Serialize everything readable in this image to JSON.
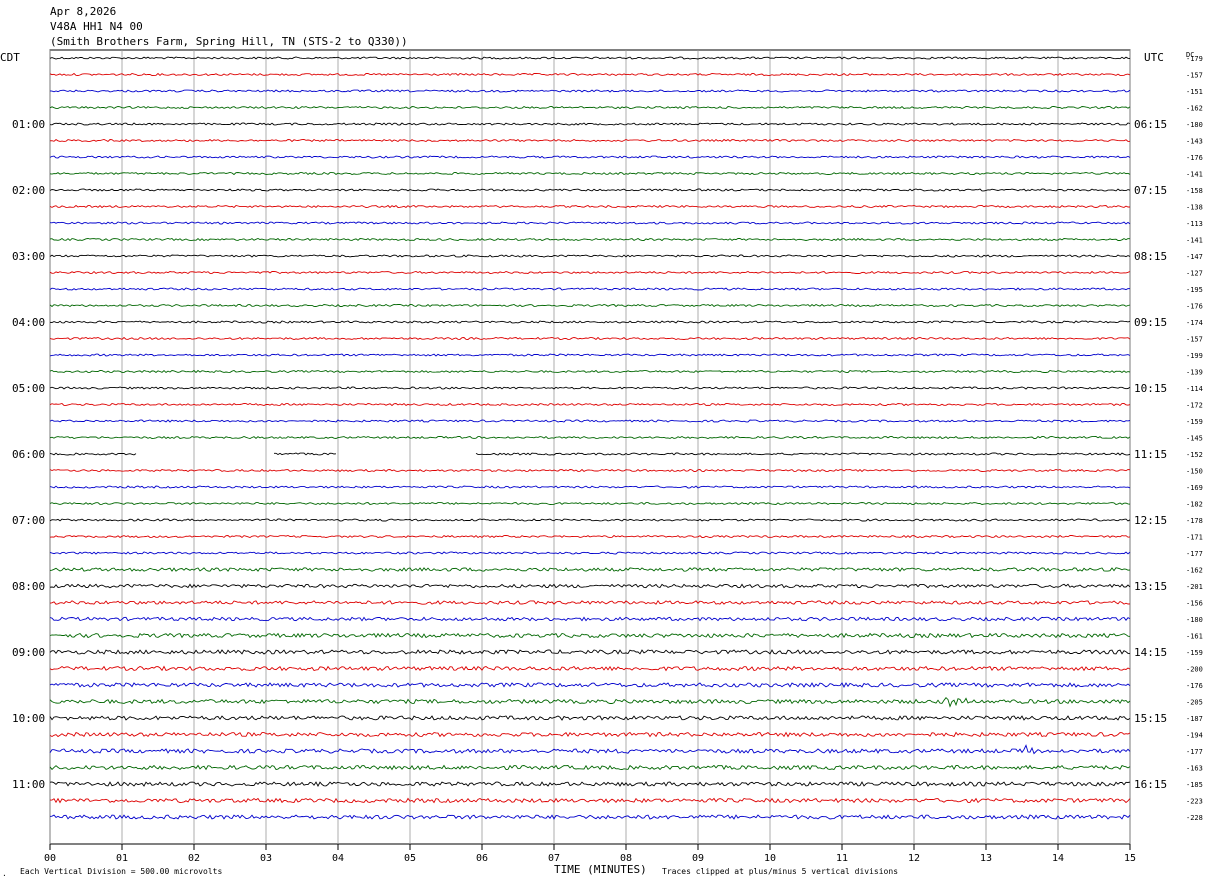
{
  "header": {
    "date": "Apr 8,2026",
    "channel": "V48A HH1 N4 00",
    "station": "(Smith Brothers Farm, Spring Hill, TN (STS-2 to Q330))"
  },
  "left_zone": "CDT",
  "right_zone": "UTC",
  "dc_label": "DC",
  "left_times": [
    "01:00",
    "02:00",
    "03:00",
    "04:00",
    "05:00",
    "06:00",
    "07:00",
    "08:00",
    "09:00",
    "10:00",
    "11:00"
  ],
  "right_times": [
    "06:15",
    "07:15",
    "08:15",
    "09:15",
    "10:15",
    "11:15",
    "12:15",
    "13:15",
    "14:15",
    "15:15",
    "16:15"
  ],
  "dc_offsets": [
    "-179",
    "-157",
    "-151",
    "-162",
    "-180",
    "-143",
    "-176",
    "-141",
    "-158",
    "-138",
    "-113",
    "-141",
    "-147",
    "-127",
    "-195",
    "-176",
    "-174",
    "-157",
    "-199",
    "-139",
    "-114",
    "-172",
    "-159",
    "-145",
    "-152",
    "-150",
    "-169",
    "-182",
    "-178",
    "-171",
    "-177",
    "-162",
    "-201",
    "-156",
    "-180",
    "-161",
    "-159",
    "-200",
    "-176",
    "-205",
    "-187",
    "-194",
    "-177",
    "-163",
    "-185",
    "-223",
    "-228"
  ],
  "footer": {
    "scale_note": "Each Vertical Division =  500.00 microvolts",
    "x_axis_label": "TIME (MINUTES)",
    "clip_note": "Traces clipped at plus/minus 5 vertical divisions"
  },
  "colors": {
    "trace_cycle": [
      "#000000",
      "#dd0000",
      "#0000cc",
      "#006600"
    ],
    "grid": "#999999"
  },
  "chart_data": {
    "type": "line",
    "description_of_series": "helicorder; 47 traces of 15 minutes each, colors cycle black/red/blue/green",
    "x_ticks": [
      "00",
      "01",
      "02",
      "03",
      "04",
      "05",
      "06",
      "07",
      "08",
      "09",
      "10",
      "11",
      "12",
      "13",
      "14",
      "15"
    ],
    "x_range": [
      0,
      15
    ],
    "trace_count": 47,
    "minutes_per_trace": 15,
    "gaps": [
      {
        "trace": 24,
        "from_min": 1.2,
        "to_min": 3.1
      },
      {
        "trace": 24,
        "from_min": 4.0,
        "to_min": 5.9
      }
    ],
    "events": [
      {
        "trace": 39,
        "at_min": 12.45,
        "amplitude_div": 3.0,
        "duration_min": 0.4
      },
      {
        "trace": 42,
        "at_min": 8.0,
        "amplitude_div": 0.6,
        "duration_min": 0.6
      },
      {
        "trace": 42,
        "at_min": 13.5,
        "amplitude_div": 3.0,
        "duration_min": 0.25
      }
    ]
  }
}
